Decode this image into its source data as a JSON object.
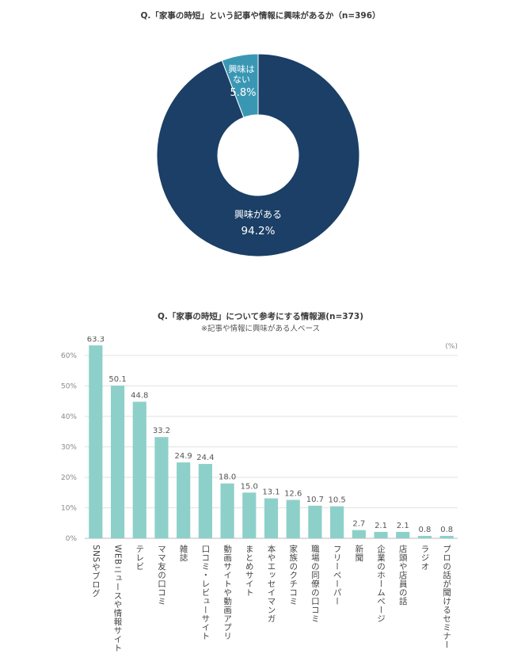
{
  "chart_data": [
    {
      "type": "pie",
      "title": "Q.「家事の時短」という記事や情報に興味があるか（n=396）",
      "slices": [
        {
          "label": "興味がある",
          "value": 94.2,
          "value_label": "94.2%",
          "color": "#1b3f66"
        },
        {
          "label_lines": [
            "興味は",
            "ない"
          ],
          "value": 5.8,
          "value_label": "5.8%",
          "color": "#3a97b4"
        }
      ]
    },
    {
      "type": "bar",
      "title": "Q.「家事の時短」について参考にする情報源(n=373)",
      "subtitle": "※記事や情報に興味がある人ベース",
      "unit": "(%)",
      "ylim": [
        0,
        60
      ],
      "yticks": [
        "0%",
        "10%",
        "20%",
        "30%",
        "40%",
        "50%",
        "60%"
      ],
      "bar_color": "#8dd0c9",
      "grid": true,
      "categories": [
        "SNSやブログ",
        "WEBニュースや情報サイト",
        "テレビ",
        "ママ友の口コミ",
        "雑誌",
        "口コミ・レビューサイト",
        "動画サイトや動画アプリ",
        "まとめサイト",
        "本やエッセイマンガ",
        "家族のクチコミ",
        "職場の同僚の口コミ",
        "フリーペーパー",
        "新聞",
        "企業のホームページ",
        "店頭や店員の話",
        "ラジオ",
        "プロの話が聞けるセミナー"
      ],
      "values": [
        63.3,
        50.1,
        44.8,
        33.2,
        24.9,
        24.4,
        18.0,
        15.0,
        13.1,
        12.6,
        10.7,
        10.5,
        2.7,
        2.1,
        2.1,
        0.8,
        0.8
      ],
      "value_labels": [
        "63.3",
        "50.1",
        "44.8",
        "33.2",
        "24.9",
        "24.4",
        "18.0",
        "15.0",
        "13.1",
        "12.6",
        "10.7",
        "10.5",
        "2.7",
        "2.1",
        "2.1",
        "0.8",
        "0.8"
      ]
    }
  ]
}
